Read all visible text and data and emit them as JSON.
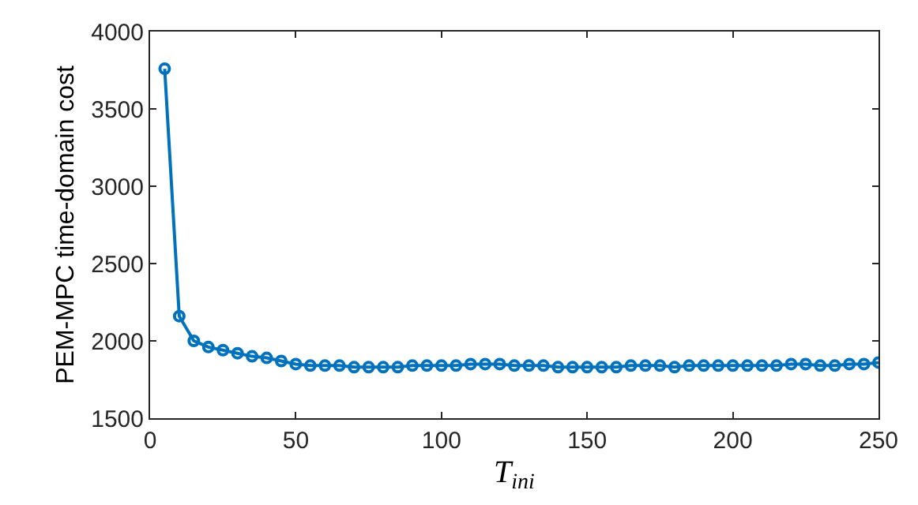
{
  "chart_data": {
    "type": "line",
    "xlabel": "T$_{ini}$",
    "ylabel": "PEM-MPC time-domain cost",
    "x": [
      5,
      10,
      15,
      20,
      25,
      30,
      35,
      40,
      45,
      50,
      55,
      60,
      65,
      70,
      75,
      80,
      85,
      90,
      95,
      100,
      105,
      110,
      115,
      120,
      125,
      130,
      135,
      140,
      145,
      150,
      155,
      160,
      165,
      170,
      175,
      180,
      185,
      190,
      195,
      200,
      205,
      210,
      215,
      220,
      225,
      230,
      235,
      240,
      245,
      250
    ],
    "series": [
      {
        "color": "#0072bd",
        "values": [
          3760,
          2160,
          2000,
          1960,
          1940,
          1920,
          1900,
          1890,
          1870,
          1850,
          1840,
          1840,
          1840,
          1830,
          1830,
          1830,
          1830,
          1840,
          1840,
          1840,
          1840,
          1850,
          1850,
          1850,
          1840,
          1840,
          1840,
          1830,
          1830,
          1830,
          1830,
          1830,
          1840,
          1840,
          1840,
          1830,
          1840,
          1840,
          1840,
          1840,
          1840,
          1840,
          1840,
          1850,
          1850,
          1840,
          1840,
          1850,
          1850,
          1860
        ]
      }
    ],
    "xlim": [
      0,
      250
    ],
    "ylim": [
      1500,
      4000
    ],
    "xticks": [
      0,
      50,
      100,
      150,
      200,
      250
    ],
    "yticks": [
      1500,
      2000,
      2500,
      3000,
      3500,
      4000
    ],
    "legend": false,
    "marker": "circle",
    "line_style": "solid"
  }
}
